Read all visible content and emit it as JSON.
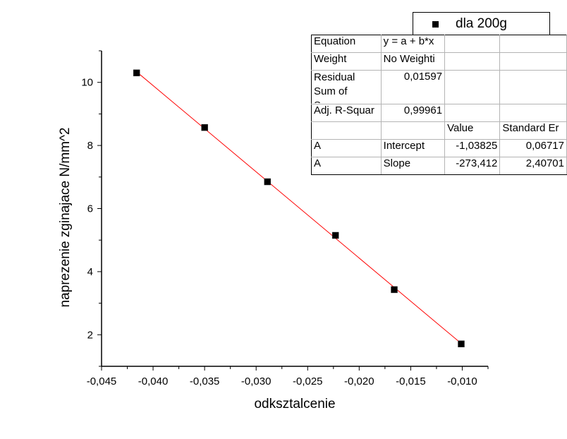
{
  "chart_data": {
    "type": "scatter",
    "xlabel": "odksztalcenie",
    "ylabel": "naprezenie zginajace N/mm^2",
    "xlim": [
      -0.045,
      -0.0075
    ],
    "ylim": [
      1.0,
      11.0
    ],
    "xticks": [
      "-0,045",
      "-0,040",
      "-0,035",
      "-0,030",
      "-0,025",
      "-0,020",
      "-0,015",
      "-0,010"
    ],
    "yticks": [
      "2",
      "4",
      "6",
      "8",
      "10"
    ],
    "series": [
      {
        "name": "dla 200g",
        "x": [
          -0.0416,
          -0.035,
          -0.0289,
          -0.0223,
          -0.0166,
          -0.0101
        ],
        "y": [
          10.3,
          8.57,
          6.85,
          5.15,
          3.43,
          1.71
        ]
      }
    ],
    "fit_line": {
      "intercept": -1.03825,
      "slope": -273.412,
      "color": "#ff0000"
    },
    "marker_color": "#000000",
    "legend_position": "top-right"
  },
  "legend": {
    "label": "dla 200g"
  },
  "fit_table": {
    "equation_label": "Equation",
    "equation_value": "y = a + b*x",
    "weight_label": "Weight",
    "weight_value": "No Weighti",
    "rss_label": "Residual Sum of Squares",
    "rss_value": "0,01597",
    "adjr_label": "Adj. R-Squar",
    "adjr_value": "0,99961",
    "col_value": "Value",
    "col_stderr": "Standard Er",
    "row1_a": "A",
    "row1_name": "Intercept",
    "row1_value": "-1,03825",
    "row1_err": "0,06717",
    "row2_a": "A",
    "row2_name": "Slope",
    "row2_value": "-273,412",
    "row2_err": "2,40701"
  }
}
